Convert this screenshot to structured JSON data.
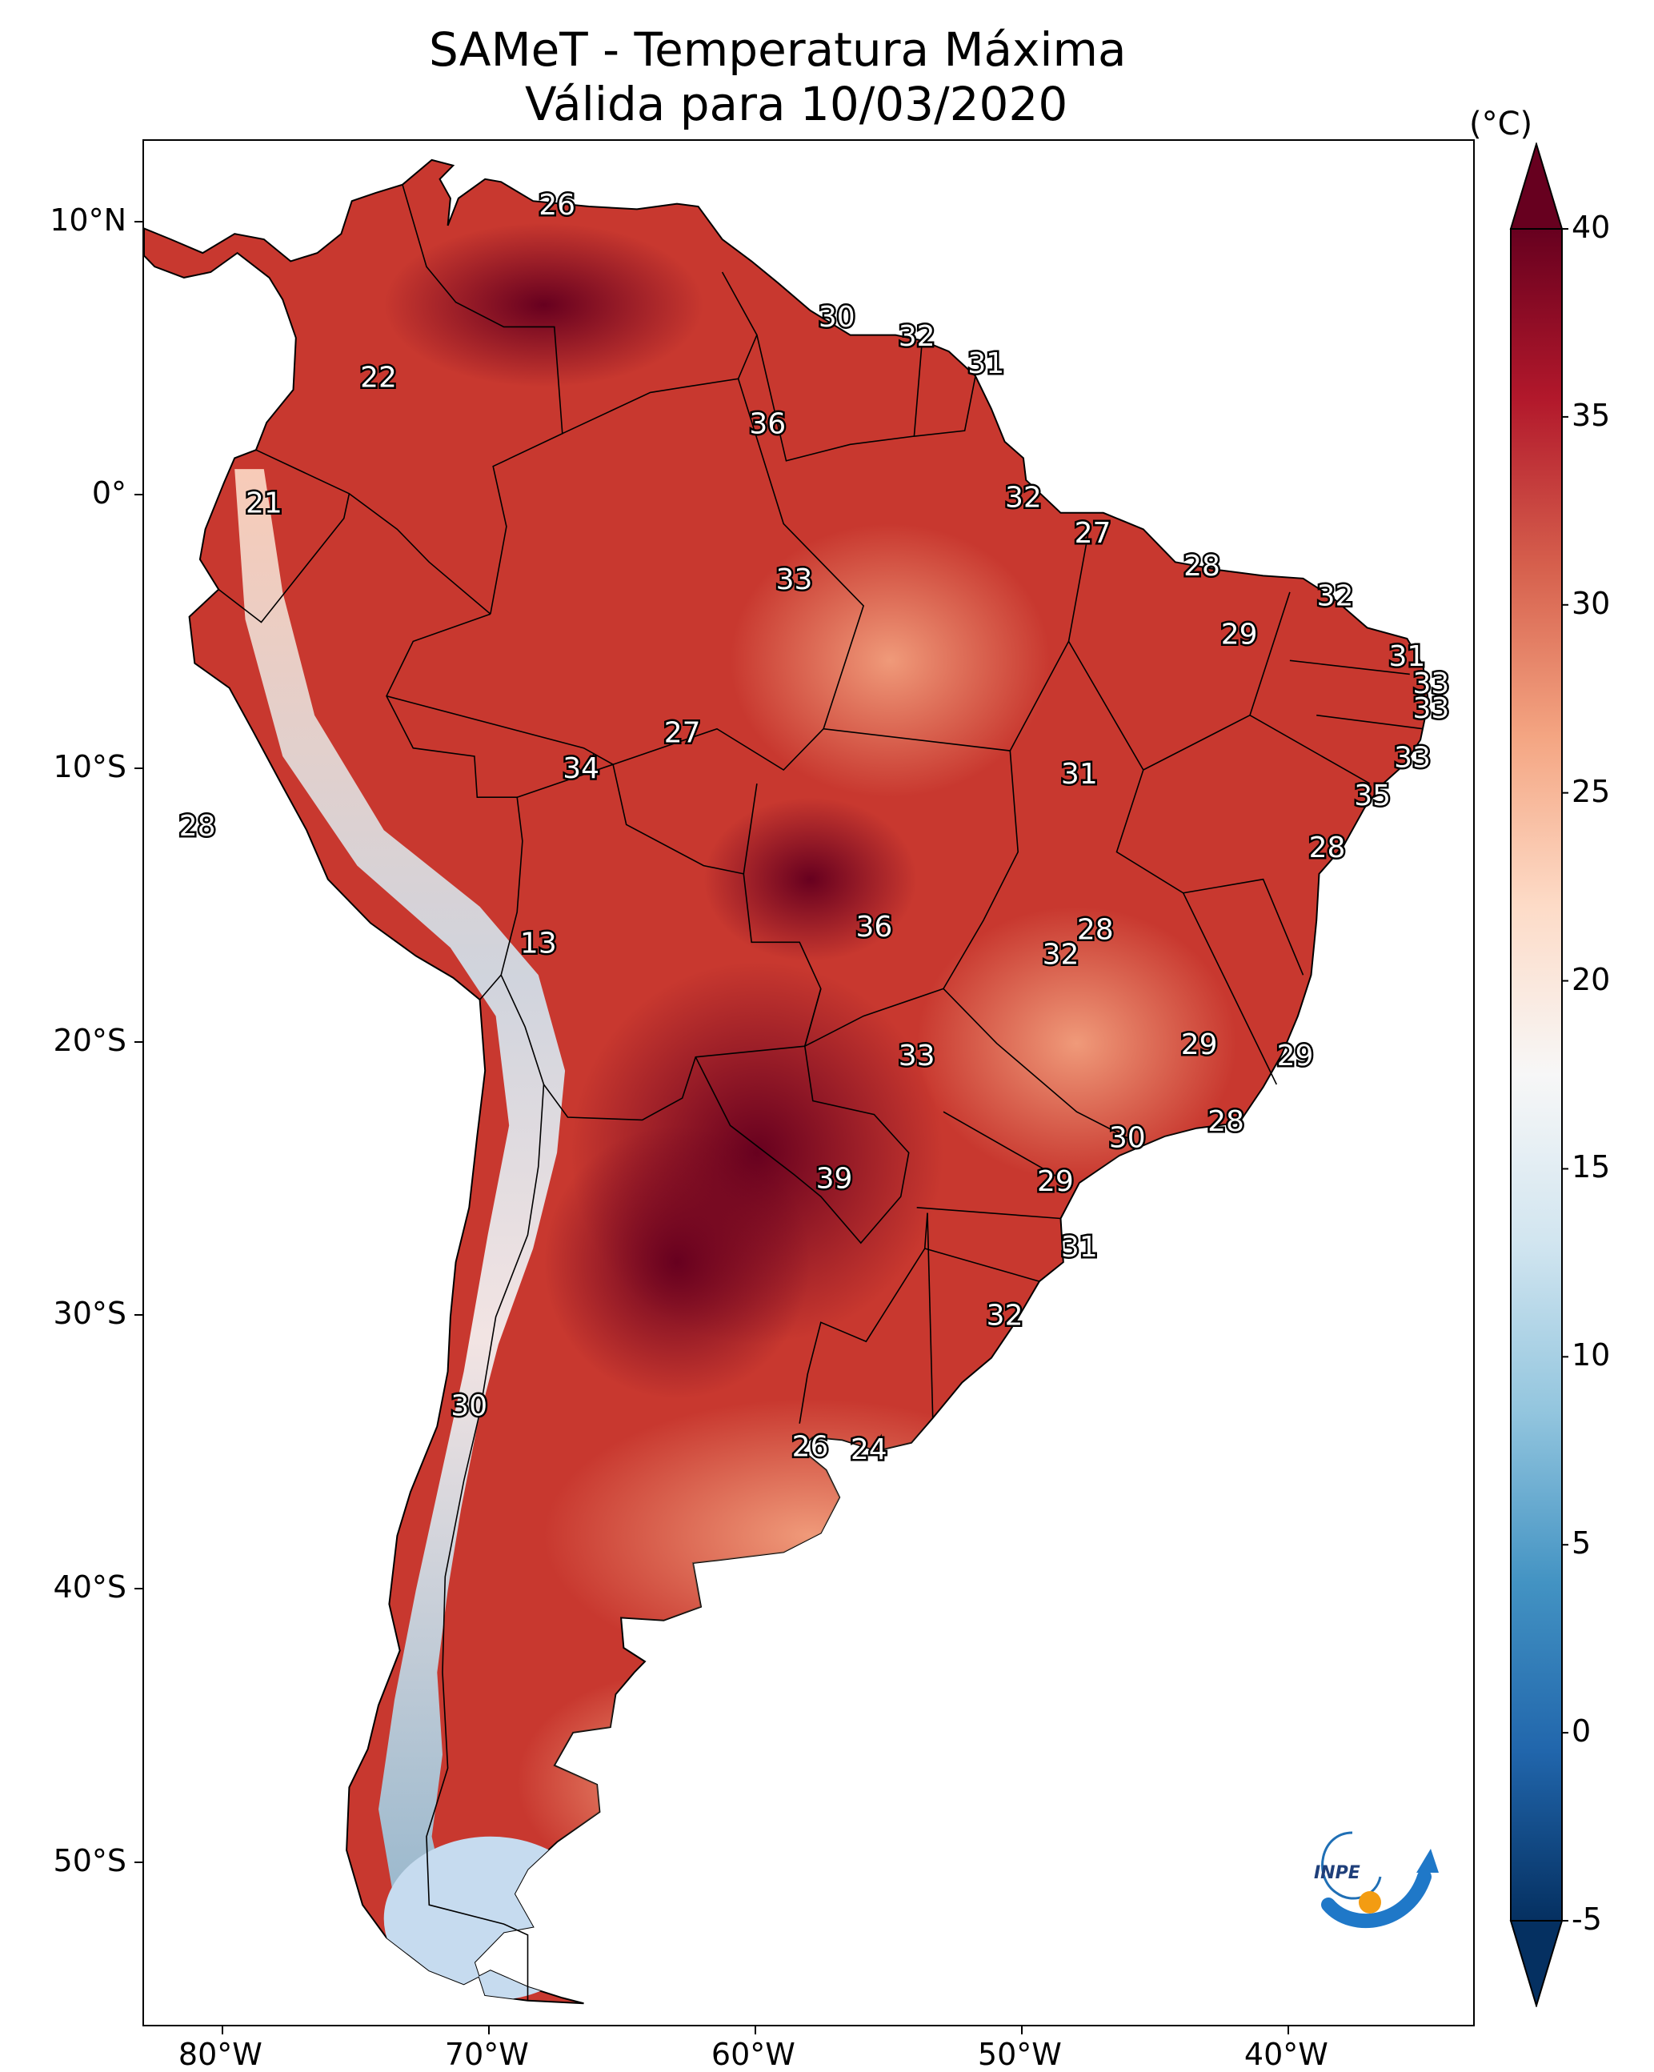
{
  "title": {
    "line1": "SAMeT - Temperatura Máxima",
    "line2": "Válida para 10/03/2020"
  },
  "axes": {
    "y_ticks": [
      {
        "label": "10°N",
        "lat": 10
      },
      {
        "label": "0°",
        "lat": 0
      },
      {
        "label": "10°S",
        "lat": -10
      },
      {
        "label": "20°S",
        "lat": -20
      },
      {
        "label": "30°S",
        "lat": -30
      },
      {
        "label": "40°S",
        "lat": -40
      },
      {
        "label": "50°S",
        "lat": -50
      }
    ],
    "x_ticks": [
      {
        "label": "80°W",
        "lon": -80
      },
      {
        "label": "70°W",
        "lon": -70
      },
      {
        "label": "60°W",
        "lon": -60
      },
      {
        "label": "50°W",
        "lon": -50
      },
      {
        "label": "40°W",
        "lon": -40
      }
    ],
    "extent": {
      "lon_min": -83,
      "lon_max": -33,
      "lat_min": -56,
      "lat_max": 13
    }
  },
  "colorbar": {
    "unit": "(°C)",
    "min": -5,
    "max": 40,
    "labels": [
      "40",
      "35",
      "30",
      "25",
      "20",
      "15",
      "10",
      "5",
      "0",
      "-5"
    ],
    "colors": [
      "#053061",
      "#2166ac",
      "#4393c3",
      "#92c5de",
      "#d1e5f0",
      "#f7f7f7",
      "#fddbc7",
      "#f4a582",
      "#d6604d",
      "#b2182b",
      "#67001f"
    ]
  },
  "temperature_labels": [
    {
      "text": "26",
      "lon": -67.5,
      "lat": 10.6
    },
    {
      "text": "30",
      "lon": -57.0,
      "lat": 6.5
    },
    {
      "text": "32",
      "lon": -54.0,
      "lat": 5.8
    },
    {
      "text": "31",
      "lon": -51.4,
      "lat": 4.8
    },
    {
      "text": "22",
      "lon": -74.2,
      "lat": 4.3
    },
    {
      "text": "36",
      "lon": -59.6,
      "lat": 2.6
    },
    {
      "text": "32",
      "lon": -50.0,
      "lat": -0.1
    },
    {
      "text": "21",
      "lon": -78.5,
      "lat": -0.3
    },
    {
      "text": "27",
      "lon": -47.4,
      "lat": -1.4
    },
    {
      "text": "28",
      "lon": -43.3,
      "lat": -2.6
    },
    {
      "text": "33",
      "lon": -58.6,
      "lat": -3.1
    },
    {
      "text": "32",
      "lon": -38.3,
      "lat": -3.7
    },
    {
      "text": "29",
      "lon": -41.9,
      "lat": -5.1
    },
    {
      "text": "31",
      "lon": -35.6,
      "lat": -5.9
    },
    {
      "text": "33",
      "lon": -34.7,
      "lat": -6.9
    },
    {
      "text": "33",
      "lon": -34.7,
      "lat": -7.8
    },
    {
      "text": "27",
      "lon": -62.8,
      "lat": -8.7
    },
    {
      "text": "33",
      "lon": -35.4,
      "lat": -9.6
    },
    {
      "text": "31",
      "lon": -47.9,
      "lat": -10.2
    },
    {
      "text": "34",
      "lon": -66.6,
      "lat": -10.0
    },
    {
      "text": "35",
      "lon": -36.9,
      "lat": -11.0
    },
    {
      "text": "28",
      "lon": -81.0,
      "lat": -12.1
    },
    {
      "text": "28",
      "lon": -38.6,
      "lat": -12.9
    },
    {
      "text": "36",
      "lon": -55.6,
      "lat": -15.8
    },
    {
      "text": "28",
      "lon": -47.3,
      "lat": -15.9
    },
    {
      "text": "32",
      "lon": -48.6,
      "lat": -16.8
    },
    {
      "text": "13",
      "lon": -68.2,
      "lat": -16.4
    },
    {
      "text": "29",
      "lon": -43.4,
      "lat": -20.1
    },
    {
      "text": "29",
      "lon": -39.8,
      "lat": -20.5
    },
    {
      "text": "33",
      "lon": -54.0,
      "lat": -20.5
    },
    {
      "text": "28",
      "lon": -42.4,
      "lat": -22.9
    },
    {
      "text": "30",
      "lon": -46.1,
      "lat": -23.5
    },
    {
      "text": "39",
      "lon": -57.1,
      "lat": -25.0
    },
    {
      "text": "29",
      "lon": -48.8,
      "lat": -25.1
    },
    {
      "text": "31",
      "lon": -47.9,
      "lat": -27.5
    },
    {
      "text": "32",
      "lon": -50.7,
      "lat": -30.0
    },
    {
      "text": "30",
      "lon": -70.8,
      "lat": -33.3
    },
    {
      "text": "26",
      "lon": -58.0,
      "lat": -34.8
    },
    {
      "text": "24",
      "lon": -55.8,
      "lat": -34.9
    }
  ],
  "logo": {
    "text": "INPE"
  }
}
